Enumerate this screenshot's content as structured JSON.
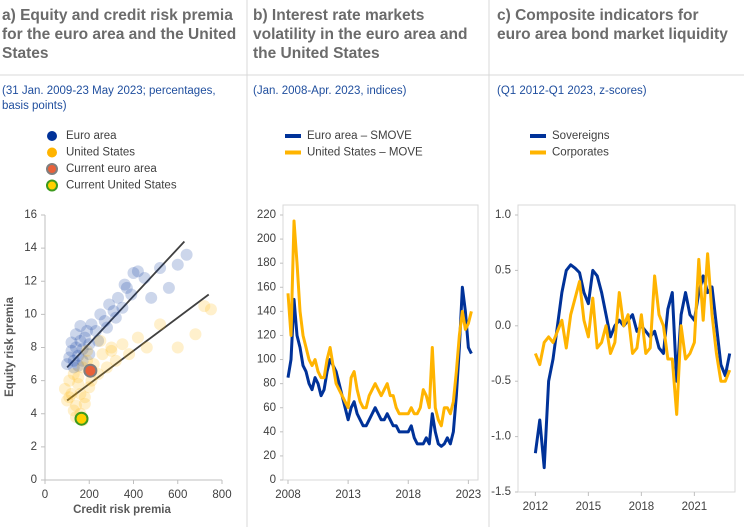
{
  "chart_data": [
    {
      "type": "scatter",
      "title": "a) Equity and credit risk premia for the euro area and the United States",
      "subtitle": "(31 Jan. 2009-23 May 2023; percentages, basis points)",
      "xlabel": "Credit risk premia",
      "ylabel": "Equity risk premia",
      "xlim": [
        0,
        800
      ],
      "xticks": [
        0,
        200,
        400,
        600,
        800
      ],
      "ylim": [
        0,
        16
      ],
      "yticks": [
        0,
        2,
        4,
        6,
        8,
        10,
        12,
        14,
        16
      ],
      "series": [
        {
          "name": "Euro area",
          "color": "#003299",
          "opacity": 0.2,
          "x": [
            100,
            110,
            120,
            130,
            140,
            150,
            160,
            170,
            180,
            190,
            200,
            210,
            230,
            250,
            270,
            290,
            310,
            330,
            350,
            370,
            390,
            400,
            420,
            450,
            480,
            520,
            560,
            600,
            640,
            130,
            150,
            170,
            200,
            240,
            280,
            320,
            360,
            120,
            140,
            160
          ],
          "values": [
            7.0,
            7.4,
            7.8,
            7.2,
            8.0,
            7.5,
            8.4,
            7.9,
            8.6,
            9.0,
            8.2,
            9.4,
            9.0,
            10.0,
            9.6,
            10.6,
            10.2,
            11.0,
            10.4,
            11.6,
            11.2,
            12.5,
            12.6,
            12.2,
            11.0,
            12.8,
            11.6,
            13.0,
            13.6,
            6.8,
            6.9,
            7.2,
            7.6,
            8.4,
            9.2,
            9.8,
            11.8,
            8.3,
            8.8,
            9.3
          ]
        },
        {
          "name": "United States",
          "color": "#ffb400",
          "opacity": 0.2,
          "x": [
            90,
            100,
            110,
            120,
            130,
            140,
            150,
            160,
            170,
            180,
            190,
            200,
            220,
            240,
            260,
            280,
            300,
            320,
            350,
            380,
            420,
            460,
            520,
            600,
            680,
            720,
            750,
            110,
            130,
            150,
            170,
            190,
            210,
            250,
            300,
            140,
            160,
            180
          ],
          "values": [
            5.5,
            4.8,
            6.0,
            5.2,
            6.4,
            4.5,
            5.8,
            4.0,
            6.8,
            5.0,
            7.2,
            5.6,
            7.0,
            6.4,
            7.6,
            6.8,
            7.8,
            7.2,
            8.2,
            7.6,
            8.6,
            8.0,
            9.4,
            8.0,
            8.8,
            10.5,
            10.3,
            5.0,
            4.2,
            6.2,
            3.6,
            7.8,
            6.0,
            8.4,
            8.0,
            3.8,
            5.2,
            4.6
          ]
        },
        {
          "name": "Current euro area",
          "color": "#e8613a",
          "edgecolor": "#7f7f7f",
          "opacity": 1,
          "x": [
            205
          ],
          "values": [
            6.6
          ]
        },
        {
          "name": "Current United States",
          "color": "#ffd000",
          "edgecolor": "#3c9a1e",
          "opacity": 1,
          "x": [
            165
          ],
          "values": [
            3.7
          ]
        }
      ],
      "trend_lines": [
        {
          "color": "#404040",
          "x": [
            100,
            630
          ],
          "y": [
            6.8,
            14.4
          ]
        },
        {
          "color": "#404040",
          "x": [
            100,
            740
          ],
          "y": [
            4.8,
            11.2
          ]
        }
      ]
    },
    {
      "type": "line",
      "title": "b) Interest rate markets volatility in the euro area and the United States",
      "subtitle": "(Jan. 2008-Apr. 2023, indices)",
      "xlim": [
        2008,
        2023.8
      ],
      "xticks": [
        2008,
        2013,
        2018,
        2023
      ],
      "ylim": [
        0,
        220
      ],
      "yticks": [
        0,
        20,
        40,
        60,
        80,
        100,
        120,
        140,
        160,
        180,
        200,
        220
      ],
      "x": [
        2008,
        2008.25,
        2008.5,
        2008.75,
        2009,
        2009.25,
        2009.5,
        2009.75,
        2010,
        2010.25,
        2010.5,
        2010.75,
        2011,
        2011.25,
        2011.5,
        2011.75,
        2012,
        2012.25,
        2012.5,
        2012.75,
        2013,
        2013.25,
        2013.5,
        2013.75,
        2014,
        2014.25,
        2014.5,
        2014.75,
        2015,
        2015.25,
        2015.5,
        2015.75,
        2016,
        2016.25,
        2016.5,
        2016.75,
        2017,
        2017.25,
        2017.5,
        2017.75,
        2018,
        2018.25,
        2018.5,
        2018.75,
        2019,
        2019.25,
        2019.5,
        2019.75,
        2020,
        2020.25,
        2020.5,
        2020.75,
        2021,
        2021.25,
        2021.5,
        2021.75,
        2022,
        2022.25,
        2022.5,
        2022.75,
        2023,
        2023.25
      ],
      "series": [
        {
          "name": "Euro area – SMOVE",
          "color": "#003299",
          "values": [
            85,
            100,
            150,
            120,
            110,
            95,
            90,
            80,
            75,
            85,
            80,
            70,
            75,
            90,
            100,
            95,
            90,
            80,
            70,
            60,
            50,
            60,
            65,
            55,
            50,
            45,
            45,
            50,
            55,
            60,
            55,
            50,
            50,
            55,
            50,
            45,
            45,
            40,
            40,
            40,
            40,
            45,
            35,
            30,
            30,
            30,
            35,
            30,
            55,
            40,
            30,
            28,
            30,
            35,
            30,
            40,
            70,
            110,
            160,
            140,
            110,
            105
          ]
        },
        {
          "name": "United States – MOVE",
          "color": "#ffb400",
          "values": [
            155,
            120,
            215,
            180,
            140,
            120,
            110,
            100,
            95,
            100,
            90,
            85,
            85,
            100,
            110,
            95,
            80,
            75,
            70,
            65,
            60,
            85,
            90,
            75,
            65,
            60,
            60,
            70,
            75,
            80,
            75,
            70,
            75,
            80,
            70,
            70,
            60,
            55,
            55,
            55,
            55,
            60,
            55,
            55,
            60,
            75,
            70,
            60,
            110,
            60,
            50,
            45,
            60,
            60,
            55,
            65,
            90,
            120,
            140,
            125,
            130,
            140
          ]
        }
      ]
    },
    {
      "type": "line",
      "title": "c) Composite indicators for euro area bond market liquidity",
      "subtitle": "(Q1 2012-Q1 2023, z-scores)",
      "xlim": [
        2011.3,
        2023.3
      ],
      "xticks": [
        2012,
        2015,
        2018,
        2021
      ],
      "ylim": [
        -1.5,
        1.0
      ],
      "yticks": [
        {
          "value": -1.5,
          "label": "-1.5"
        },
        {
          "value": -1,
          "label": "-1.0"
        },
        {
          "value": -0.5,
          "label": "-0.5"
        },
        {
          "value": 0,
          "label": "0.0"
        },
        {
          "value": 0.5,
          "label": "0.5"
        },
        {
          "value": 1,
          "label": "1.0"
        }
      ],
      "x": [
        2012,
        2012.25,
        2012.5,
        2012.75,
        2013,
        2013.25,
        2013.5,
        2013.75,
        2014,
        2014.25,
        2014.5,
        2014.75,
        2015,
        2015.25,
        2015.5,
        2015.75,
        2016,
        2016.25,
        2016.5,
        2016.75,
        2017,
        2017.25,
        2017.5,
        2017.75,
        2018,
        2018.25,
        2018.5,
        2018.75,
        2019,
        2019.25,
        2019.5,
        2019.75,
        2020,
        2020.25,
        2020.5,
        2020.75,
        2021,
        2021.25,
        2021.5,
        2021.75,
        2022,
        2022.25,
        2022.5,
        2022.75,
        2023
      ],
      "series": [
        {
          "name": "Sovereigns",
          "color": "#003299",
          "values": [
            -1.15,
            -0.85,
            -1.28,
            -0.5,
            -0.3,
            0.0,
            0.3,
            0.5,
            0.55,
            0.52,
            0.48,
            0.3,
            0.2,
            0.5,
            0.45,
            0.3,
            0.1,
            -0.1,
            0.0,
            0.05,
            0.0,
            0.05,
            0.1,
            -0.05,
            0.0,
            -0.05,
            -0.1,
            -0.05,
            -0.2,
            -0.25,
            0.15,
            0.3,
            -0.5,
            0.1,
            0.3,
            0.1,
            0.05,
            0.3,
            0.45,
            0.3,
            0.35,
            0.0,
            -0.35,
            -0.45,
            -0.25
          ]
        },
        {
          "name": "Corporates",
          "color": "#ffb400",
          "values": [
            -0.25,
            -0.35,
            -0.15,
            -0.1,
            -0.15,
            -0.05,
            0.05,
            -0.2,
            0.1,
            0.25,
            0.4,
            0.05,
            -0.1,
            0.25,
            -0.2,
            -0.15,
            0.0,
            -0.25,
            -0.15,
            0.3,
            0.0,
            0.1,
            -0.25,
            -0.2,
            0.1,
            -0.25,
            -0.2,
            0.45,
            0.1,
            0.0,
            -0.3,
            -0.3,
            -0.8,
            0.0,
            -0.3,
            -0.25,
            -0.15,
            0.6,
            0.05,
            0.65,
            0.1,
            -0.25,
            -0.5,
            -0.5,
            -0.4
          ]
        }
      ]
    }
  ]
}
